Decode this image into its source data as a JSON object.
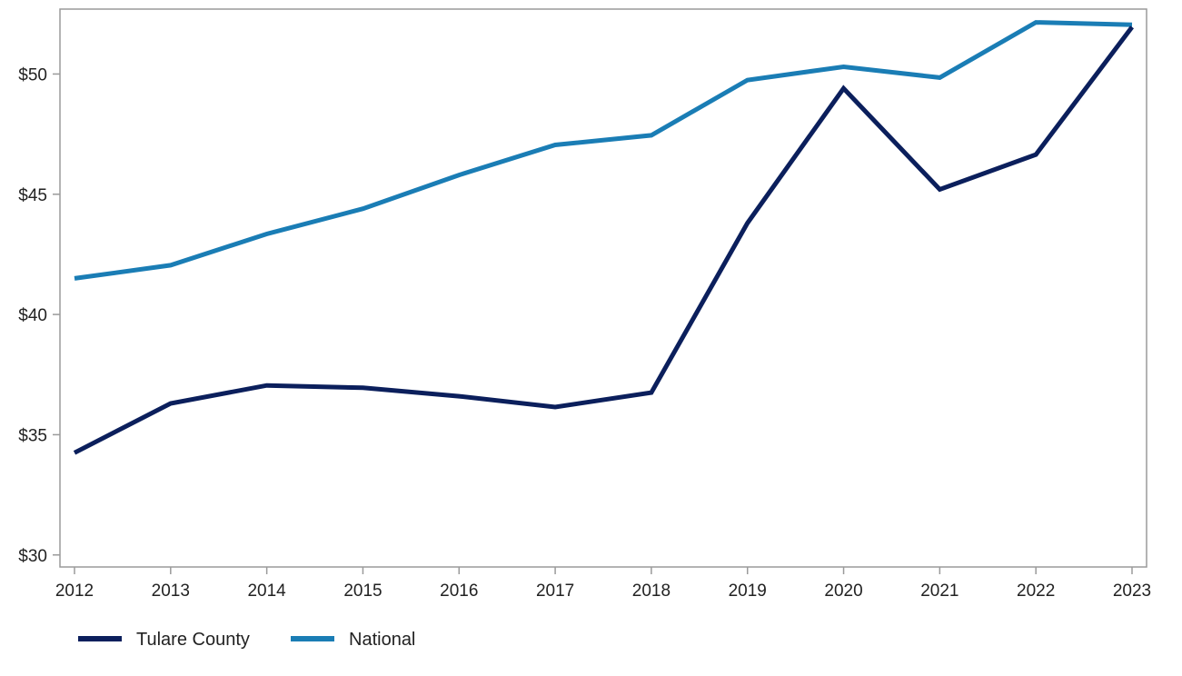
{
  "chart_data": {
    "type": "line",
    "title": "",
    "xlabel": "",
    "ylabel": "",
    "x": [
      "2012",
      "2013",
      "2014",
      "2015",
      "2016",
      "2017",
      "2018",
      "2019",
      "2020",
      "2021",
      "2022",
      "2023"
    ],
    "ylim": [
      29.5,
      52.7
    ],
    "yticks": [
      30,
      35,
      40,
      45,
      50
    ],
    "ytick_labels": [
      "$30",
      "$35",
      "$40",
      "$45",
      "$50"
    ],
    "grid": false,
    "legend_position": "bottom-left",
    "series": [
      {
        "name": "Tulare County",
        "color": "#0b1f5c",
        "values": [
          34.25,
          36.3,
          37.05,
          36.95,
          36.6,
          36.15,
          36.75,
          43.8,
          49.4,
          45.2,
          46.65,
          51.95
        ]
      },
      {
        "name": "National",
        "color": "#1a7db5",
        "values": [
          41.5,
          42.05,
          43.35,
          44.4,
          45.8,
          47.05,
          47.45,
          49.75,
          50.3,
          49.85,
          52.15,
          52.05
        ]
      }
    ]
  }
}
